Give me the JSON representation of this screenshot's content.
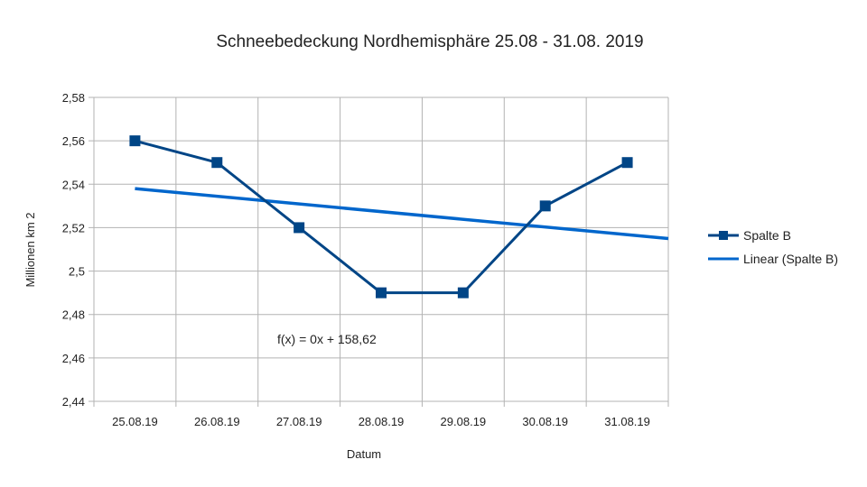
{
  "chart_data": {
    "type": "line",
    "title": "Schneebedeckung Nordhemisphäre 25.08 - 31.08. 2019",
    "xlabel": "Datum",
    "ylabel": "Millionen km 2",
    "categories": [
      "25.08.19",
      "26.08.19",
      "27.08.19",
      "28.08.19",
      "29.08.19",
      "30.08.19",
      "31.08.19"
    ],
    "series": [
      {
        "name": "Spalte B",
        "values": [
          2.56,
          2.55,
          2.52,
          2.49,
          2.49,
          2.53,
          2.55
        ],
        "color": "#004586",
        "marker": "square"
      }
    ],
    "trendline": {
      "name": "Linear (Spalte B)",
      "type": "linear",
      "color": "#0066cc",
      "start_value": 2.538,
      "end_value": 2.515,
      "equation": "f(x) = 0x + 158,62"
    },
    "y_ticks": [
      "2,44",
      "2,46",
      "2,48",
      "2,5",
      "2,52",
      "2,54",
      "2,56",
      "2,58"
    ],
    "ylim": [
      2.44,
      2.58
    ],
    "grid": true,
    "legend_position": "right"
  }
}
